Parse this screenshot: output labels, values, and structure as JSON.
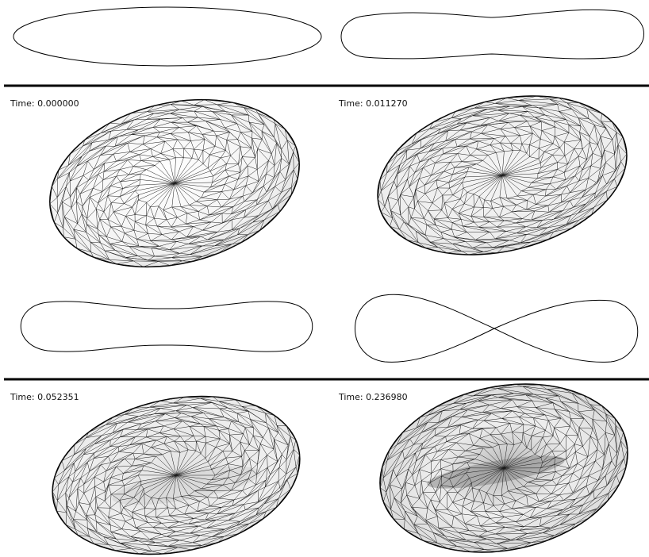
{
  "panels": [
    {
      "time_label": "Time: 0.000000"
    },
    {
      "time_label": "Time: 0.011270"
    },
    {
      "time_label": "Time: 0.052351"
    },
    {
      "time_label": "Time: 0.236980"
    }
  ],
  "colors": {
    "outline": "#000000",
    "mesh_line": "#1a1a1a",
    "surface_light": "#ffffff",
    "surface_shade": "#c4c4c4",
    "background": "#ffffff"
  }
}
